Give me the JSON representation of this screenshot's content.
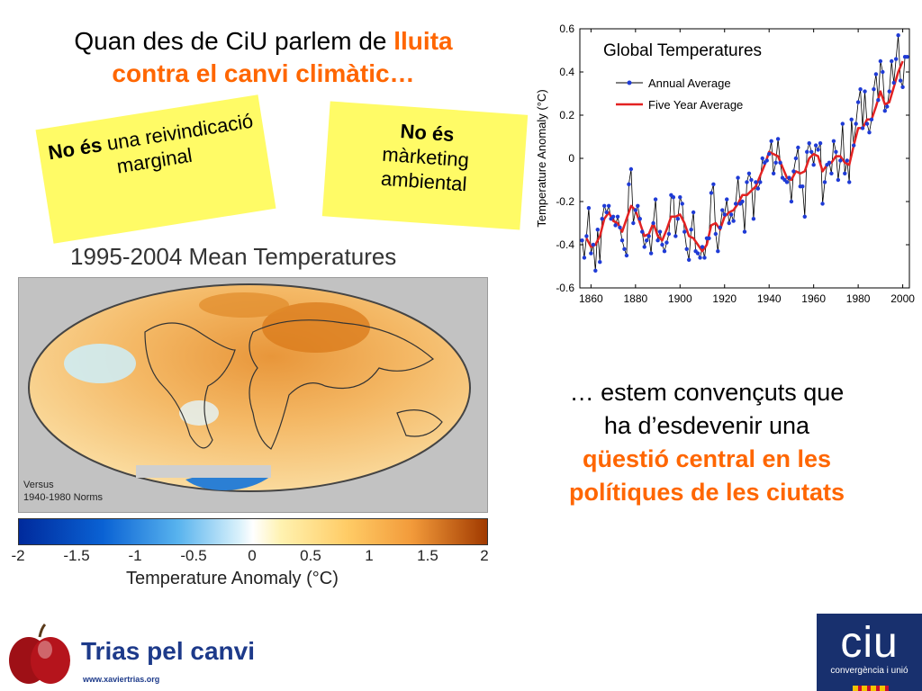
{
  "headline": {
    "text_plain": "Quan des de CiU parlem de ",
    "text_highlight_1": "lluita",
    "text_highlight_2": "contra el canvi climàtic…"
  },
  "notes": [
    {
      "bold": "No és",
      "rest": " una reivindicació marginal"
    },
    {
      "bold": "No és",
      "rest_line1": "màrketing",
      "rest_line2": "ambiental"
    }
  ],
  "map": {
    "title": "1995-2004 Mean Temperatures",
    "versus_line1": "Versus",
    "versus_line2": "1940-1980 Norms",
    "colorbar_ticks": [
      "-2",
      "-1.5",
      "-1",
      "-0.5",
      "0",
      "0.5",
      "1",
      "1.5",
      "2"
    ],
    "colorbar_label": "Temperature Anomaly (°C)"
  },
  "bottom_text": {
    "line1": "… estem convençuts que",
    "line2": "ha d’esdevenir una",
    "highlight_line1": "qüestió central en les",
    "highlight_line2": "polítiques de les ciutats"
  },
  "footer": {
    "brand": "Trias pel canvi",
    "url": "www.xaviertrias.org",
    "ciu_logo": "ciu",
    "ciu_sub": "convergència i unió"
  },
  "colors": {
    "accent_orange": "#ff6600",
    "note_yellow": "#fffb66",
    "annual_blue": "#1f3bd6",
    "five_year_red": "#e32222",
    "ciu_navy": "#18306e",
    "trias_blue": "#1d3a8a"
  },
  "chart_data": {
    "type": "line",
    "title": "Global Temperatures",
    "xlabel": "",
    "ylabel": "Temperature Anomaly (°C)",
    "xlim": [
      1855,
      2003
    ],
    "ylim": [
      -0.6,
      0.6
    ],
    "xticks": [
      "1860",
      "1880",
      "1900",
      "1920",
      "1940",
      "1960",
      "1980",
      "2000"
    ],
    "yticks": [
      "0.6",
      "0.4",
      "0.2",
      "0",
      "-0.2",
      "-0.4",
      "-0.6"
    ],
    "legend_position": "top-left",
    "grid": false,
    "series": [
      {
        "name": "Annual Average",
        "x": [
          1856,
          1857,
          1858,
          1859,
          1860,
          1861,
          1862,
          1863,
          1864,
          1865,
          1866,
          1867,
          1868,
          1869,
          1870,
          1871,
          1872,
          1873,
          1874,
          1875,
          1876,
          1877,
          1878,
          1879,
          1880,
          1881,
          1882,
          1883,
          1884,
          1885,
          1886,
          1887,
          1888,
          1889,
          1890,
          1891,
          1892,
          1893,
          1894,
          1895,
          1896,
          1897,
          1898,
          1899,
          1900,
          1901,
          1902,
          1903,
          1904,
          1905,
          1906,
          1907,
          1908,
          1909,
          1910,
          1911,
          1912,
          1913,
          1914,
          1915,
          1916,
          1917,
          1918,
          1919,
          1920,
          1921,
          1922,
          1923,
          1924,
          1925,
          1926,
          1927,
          1928,
          1929,
          1930,
          1931,
          1932,
          1933,
          1934,
          1935,
          1936,
          1937,
          1938,
          1939,
          1940,
          1941,
          1942,
          1943,
          1944,
          1945,
          1946,
          1947,
          1948,
          1949,
          1950,
          1951,
          1952,
          1953,
          1954,
          1955,
          1956,
          1957,
          1958,
          1959,
          1960,
          1961,
          1962,
          1963,
          1964,
          1965,
          1966,
          1967,
          1968,
          1969,
          1970,
          1971,
          1972,
          1973,
          1974,
          1975,
          1976,
          1977,
          1978,
          1979,
          1980,
          1981,
          1982,
          1983,
          1984,
          1985,
          1986,
          1987,
          1988,
          1989,
          1990,
          1991,
          1992,
          1993,
          1994,
          1995,
          1996,
          1997,
          1998,
          1999,
          2000,
          2001,
          2002
        ],
        "values": [
          -0.38,
          -0.46,
          -0.36,
          -0.23,
          -0.44,
          -0.4,
          -0.52,
          -0.33,
          -0.48,
          -0.28,
          -0.22,
          -0.25,
          -0.22,
          -0.28,
          -0.27,
          -0.31,
          -0.27,
          -0.32,
          -0.38,
          -0.42,
          -0.45,
          -0.12,
          -0.05,
          -0.3,
          -0.24,
          -0.22,
          -0.28,
          -0.34,
          -0.41,
          -0.38,
          -0.36,
          -0.44,
          -0.3,
          -0.19,
          -0.38,
          -0.34,
          -0.4,
          -0.43,
          -0.39,
          -0.35,
          -0.17,
          -0.18,
          -0.36,
          -0.28,
          -0.18,
          -0.21,
          -0.34,
          -0.42,
          -0.47,
          -0.33,
          -0.25,
          -0.43,
          -0.44,
          -0.46,
          -0.41,
          -0.46,
          -0.37,
          -0.37,
          -0.16,
          -0.12,
          -0.35,
          -0.43,
          -0.32,
          -0.24,
          -0.26,
          -0.19,
          -0.3,
          -0.26,
          -0.29,
          -0.21,
          -0.09,
          -0.21,
          -0.2,
          -0.34,
          -0.11,
          -0.07,
          -0.1,
          -0.28,
          -0.11,
          -0.14,
          -0.11,
          0.0,
          -0.02,
          -0.01,
          0.02,
          0.08,
          -0.07,
          -0.02,
          0.09,
          -0.02,
          -0.09,
          -0.1,
          -0.11,
          -0.09,
          -0.2,
          -0.06,
          0.0,
          0.05,
          -0.13,
          -0.13,
          -0.27,
          0.03,
          0.07,
          0.03,
          -0.03,
          0.06,
          0.04,
          0.07,
          -0.21,
          -0.11,
          -0.03,
          -0.02,
          -0.07,
          0.08,
          0.03,
          -0.1,
          -0.01,
          0.16,
          -0.07,
          -0.01,
          -0.11,
          0.18,
          0.06,
          0.16,
          0.26,
          0.32,
          0.14,
          0.31,
          0.16,
          0.12,
          0.18,
          0.32,
          0.39,
          0.27,
          0.45,
          0.4,
          0.22,
          0.24,
          0.31,
          0.45,
          0.35,
          0.46,
          0.57,
          0.36,
          0.33,
          0.47,
          0.47
        ]
      },
      {
        "name": "Five Year Average",
        "x": [
          1858,
          1860,
          1862,
          1864,
          1866,
          1868,
          1870,
          1872,
          1874,
          1876,
          1878,
          1880,
          1882,
          1884,
          1886,
          1888,
          1890,
          1892,
          1894,
          1896,
          1898,
          1900,
          1902,
          1904,
          1906,
          1908,
          1910,
          1912,
          1914,
          1916,
          1918,
          1920,
          1922,
          1924,
          1926,
          1928,
          1930,
          1932,
          1934,
          1936,
          1938,
          1940,
          1942,
          1944,
          1946,
          1948,
          1950,
          1952,
          1954,
          1956,
          1958,
          1960,
          1962,
          1964,
          1966,
          1968,
          1970,
          1972,
          1974,
          1976,
          1978,
          1980,
          1982,
          1984,
          1986,
          1988,
          1990,
          1992,
          1994,
          1996,
          1998,
          2000
        ],
        "values": [
          -0.37,
          -0.41,
          -0.4,
          -0.36,
          -0.28,
          -0.25,
          -0.29,
          -0.3,
          -0.34,
          -0.28,
          -0.22,
          -0.24,
          -0.3,
          -0.36,
          -0.35,
          -0.3,
          -0.36,
          -0.38,
          -0.33,
          -0.27,
          -0.27,
          -0.26,
          -0.3,
          -0.36,
          -0.37,
          -0.4,
          -0.43,
          -0.4,
          -0.31,
          -0.3,
          -0.33,
          -0.27,
          -0.25,
          -0.24,
          -0.21,
          -0.17,
          -0.17,
          -0.15,
          -0.13,
          -0.08,
          -0.03,
          0.03,
          0.02,
          0.01,
          -0.04,
          -0.09,
          -0.1,
          -0.06,
          -0.07,
          -0.06,
          0.0,
          0.02,
          0.01,
          -0.06,
          -0.03,
          -0.02,
          0.01,
          0.01,
          -0.02,
          -0.03,
          0.06,
          0.14,
          0.14,
          0.18,
          0.18,
          0.24,
          0.31,
          0.25,
          0.26,
          0.33,
          0.4,
          0.45
        ]
      }
    ]
  }
}
